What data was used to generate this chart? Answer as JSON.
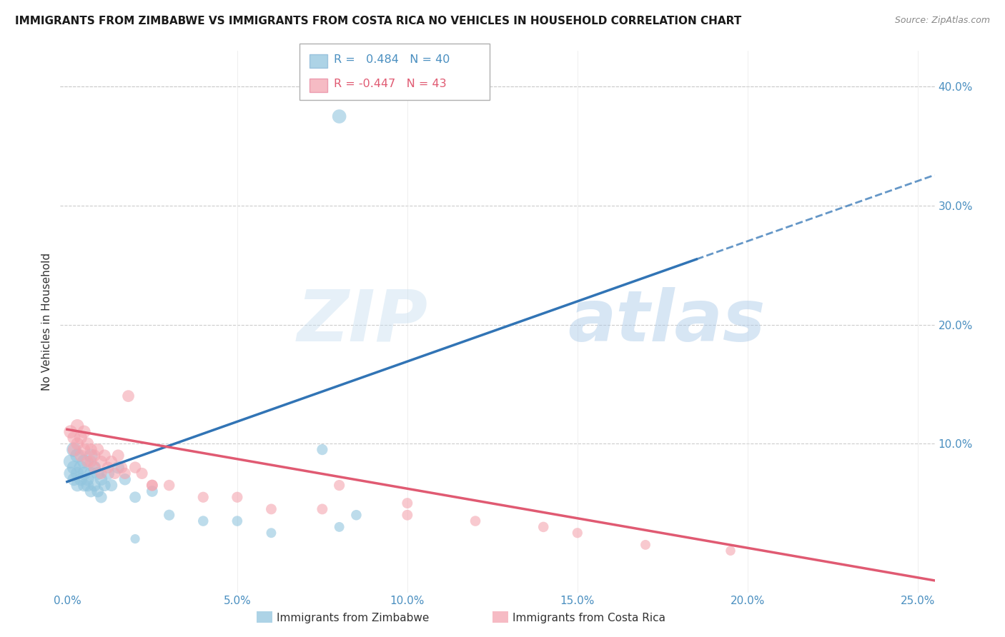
{
  "title": "IMMIGRANTS FROM ZIMBABWE VS IMMIGRANTS FROM COSTA RICA NO VEHICLES IN HOUSEHOLD CORRELATION CHART",
  "source": "Source: ZipAtlas.com",
  "ylabel": "No Vehicles in Household",
  "right_ytick_labels": [
    "10.0%",
    "20.0%",
    "30.0%",
    "40.0%"
  ],
  "right_ytick_values": [
    0.1,
    0.2,
    0.3,
    0.4
  ],
  "xlim": [
    -0.002,
    0.255
  ],
  "ylim": [
    -0.025,
    0.43
  ],
  "xtick_labels": [
    "0.0%",
    "5.0%",
    "10.0%",
    "15.0%",
    "20.0%",
    "25.0%"
  ],
  "xtick_values": [
    0.0,
    0.05,
    0.1,
    0.15,
    0.2,
    0.25
  ],
  "legend_r_zimbabwe": "0.484",
  "legend_n_zimbabwe": "40",
  "legend_r_costarica": "-0.447",
  "legend_n_costarica": "43",
  "label_zimbabwe": "Immigrants from Zimbabwe",
  "label_costarica": "Immigrants from Costa Rica",
  "color_zimbabwe": "#92c5de",
  "color_costarica": "#f4a5b0",
  "trendline_zimbabwe_color": "#3174b5",
  "trendline_costarica_color": "#e05a72",
  "background_color": "#ffffff",
  "zim_trendline_x0": 0.0,
  "zim_trendline_y0": 0.068,
  "zim_trendline_x1": 0.185,
  "zim_trendline_y1": 0.255,
  "zim_trendline_dash_x0": 0.185,
  "zim_trendline_dash_x1": 0.255,
  "cr_trendline_x0": 0.0,
  "cr_trendline_y0": 0.112,
  "cr_trendline_x1": 0.255,
  "cr_trendline_y1": -0.015,
  "zimbabwe_x": [
    0.001,
    0.001,
    0.002,
    0.002,
    0.002,
    0.003,
    0.003,
    0.003,
    0.004,
    0.004,
    0.005,
    0.005,
    0.005,
    0.006,
    0.006,
    0.007,
    0.007,
    0.007,
    0.008,
    0.008,
    0.009,
    0.009,
    0.01,
    0.01,
    0.011,
    0.012,
    0.013,
    0.015,
    0.017,
    0.02,
    0.025,
    0.03,
    0.04,
    0.05,
    0.06,
    0.075,
    0.085,
    0.08,
    0.02,
    0.08
  ],
  "zimbabwe_y": [
    0.085,
    0.075,
    0.095,
    0.08,
    0.07,
    0.09,
    0.075,
    0.065,
    0.08,
    0.07,
    0.085,
    0.065,
    0.075,
    0.07,
    0.065,
    0.09,
    0.075,
    0.06,
    0.08,
    0.065,
    0.075,
    0.06,
    0.07,
    0.055,
    0.065,
    0.075,
    0.065,
    0.08,
    0.07,
    0.055,
    0.06,
    0.04,
    0.035,
    0.035,
    0.025,
    0.095,
    0.04,
    0.03,
    0.02,
    0.375
  ],
  "zimbabwe_sizes": [
    200,
    180,
    220,
    190,
    170,
    200,
    180,
    160,
    190,
    170,
    200,
    160,
    180,
    170,
    160,
    190,
    170,
    150,
    180,
    160,
    170,
    150,
    160,
    140,
    150,
    170,
    150,
    160,
    140,
    130,
    130,
    120,
    110,
    110,
    100,
    120,
    110,
    100,
    90,
    200
  ],
  "costarica_x": [
    0.001,
    0.002,
    0.002,
    0.003,
    0.003,
    0.004,
    0.004,
    0.005,
    0.005,
    0.006,
    0.006,
    0.007,
    0.007,
    0.008,
    0.008,
    0.009,
    0.01,
    0.01,
    0.011,
    0.012,
    0.013,
    0.014,
    0.015,
    0.016,
    0.017,
    0.018,
    0.02,
    0.022,
    0.025,
    0.03,
    0.04,
    0.06,
    0.08,
    0.1,
    0.12,
    0.15,
    0.17,
    0.195,
    0.025,
    0.05,
    0.075,
    0.1,
    0.14
  ],
  "costarica_y": [
    0.11,
    0.105,
    0.095,
    0.115,
    0.1,
    0.105,
    0.09,
    0.11,
    0.095,
    0.1,
    0.085,
    0.095,
    0.085,
    0.09,
    0.08,
    0.095,
    0.085,
    0.075,
    0.09,
    0.08,
    0.085,
    0.075,
    0.09,
    0.08,
    0.075,
    0.14,
    0.08,
    0.075,
    0.065,
    0.065,
    0.055,
    0.045,
    0.065,
    0.05,
    0.035,
    0.025,
    0.015,
    0.01,
    0.065,
    0.055,
    0.045,
    0.04,
    0.03
  ],
  "costarica_sizes": [
    180,
    170,
    160,
    180,
    160,
    170,
    150,
    170,
    155,
    160,
    145,
    155,
    145,
    150,
    140,
    155,
    145,
    135,
    150,
    140,
    145,
    135,
    150,
    140,
    135,
    145,
    140,
    135,
    130,
    125,
    120,
    115,
    120,
    115,
    110,
    105,
    100,
    95,
    130,
    120,
    115,
    115,
    110
  ]
}
